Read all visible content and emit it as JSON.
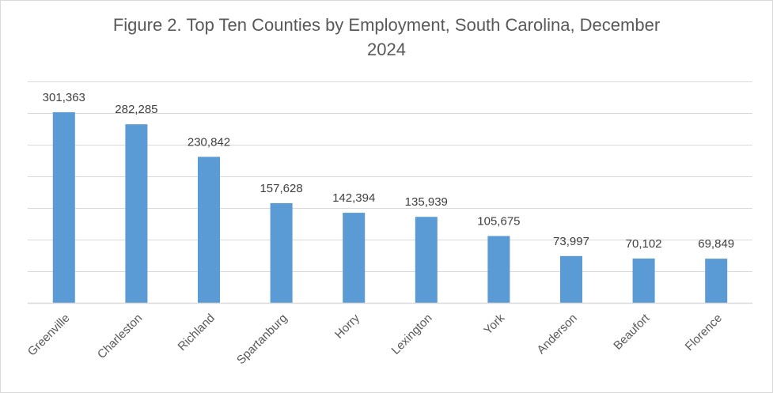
{
  "chart_data": {
    "type": "bar",
    "title_line1": "Figure 2. Top Ten Counties by Employment, South Carolina, December",
    "title_line2": "2024",
    "xlabel": "",
    "ylabel": "",
    "categories": [
      "Greenville",
      "Charleston",
      "Richland",
      "Spartanburg",
      "Horry",
      "Lexington",
      "York",
      "Anderson",
      "Beaufort",
      "Florence"
    ],
    "values": [
      301363,
      282285,
      230842,
      157628,
      142394,
      135939,
      105675,
      73997,
      70102,
      69849
    ],
    "data_labels": [
      "301,363",
      "282,285",
      "230,842",
      "157,628",
      "142,394",
      "135,939",
      "105,675",
      "73,997",
      "70,102",
      "69,849"
    ],
    "ylim": [
      0,
      350000
    ],
    "y_grid_step": 50000,
    "grid": true,
    "legend": "none",
    "bar_color": "#5b9bd5",
    "grid_color": "#d9d9d9"
  }
}
